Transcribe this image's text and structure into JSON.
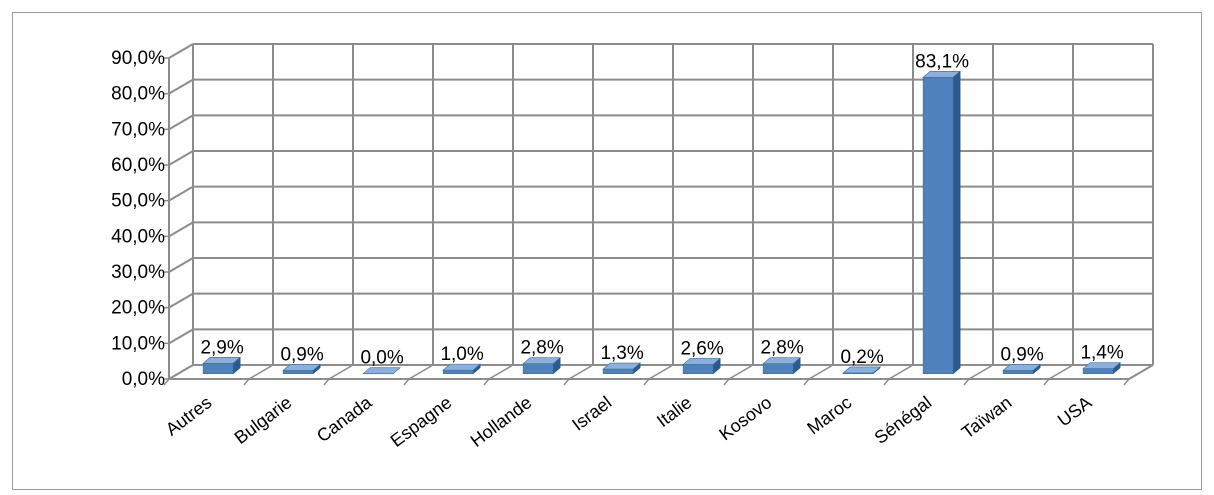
{
  "colors": {
    "bar_front": "#4f81bd",
    "bar_side": "#2b5a8f",
    "bar_top": "#8cb0dd",
    "grid": "#8c8c8c",
    "wall": "#ffffff",
    "floor": "#ffffff"
  },
  "chart_data": {
    "type": "bar",
    "title": "",
    "xlabel": "",
    "ylabel": "",
    "ylim": [
      0,
      90
    ],
    "y_ticks": [
      "0,0%",
      "10,0%",
      "20,0%",
      "30,0%",
      "40,0%",
      "50,0%",
      "60,0%",
      "70,0%",
      "80,0%",
      "90,0%"
    ],
    "grid": true,
    "three_d": true,
    "legend": "none",
    "categories": [
      "Autres",
      "Bulgarie",
      "Canada",
      "Espagne",
      "Hollande",
      "Israel",
      "Italie",
      "Kosovo",
      "Maroc",
      "Sénégal",
      "Taïwan",
      "USA"
    ],
    "values": [
      2.9,
      0.9,
      0.0,
      1.0,
      2.8,
      1.3,
      2.6,
      2.8,
      0.2,
      83.1,
      0.9,
      1.4
    ],
    "data_labels": [
      "2,9%",
      "0,9%",
      "0,0%",
      "1,0%",
      "2,8%",
      "1,3%",
      "2,6%",
      "2,8%",
      "0,2%",
      "83,1%",
      "0,9%",
      "1,4%"
    ]
  }
}
